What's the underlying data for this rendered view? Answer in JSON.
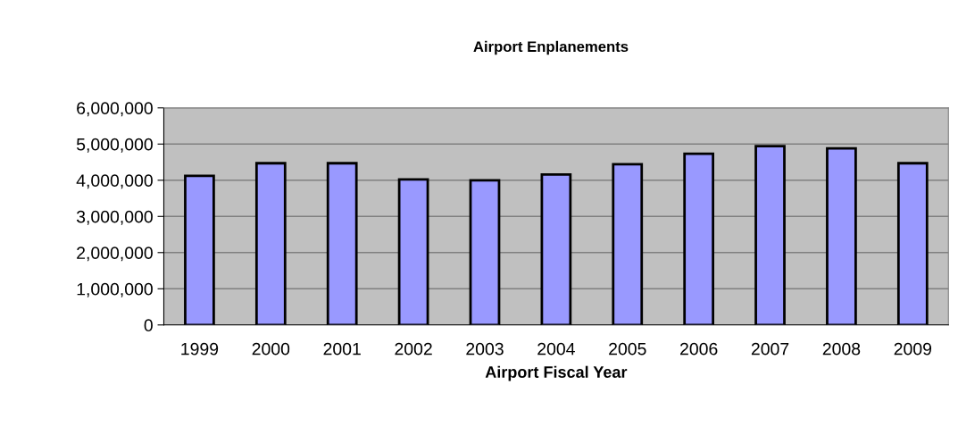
{
  "chart_data": {
    "type": "bar",
    "title": "Airport Enplanements",
    "xlabel": "Airport Fiscal Year",
    "categories": [
      "1999",
      "2000",
      "2001",
      "2002",
      "2003",
      "2004",
      "2005",
      "2006",
      "2007",
      "2008",
      "2009"
    ],
    "values": [
      4120000,
      4470000,
      4470000,
      4020000,
      4000000,
      4160000,
      4440000,
      4730000,
      4940000,
      4880000,
      4470000
    ],
    "color": "#9999ff",
    "ylim": [
      0,
      6000000
    ],
    "yticks": [
      {
        "value": 0,
        "label": "0"
      },
      {
        "value": 1000000,
        "label": "1,000,000"
      },
      {
        "value": 2000000,
        "label": "2,000,000"
      },
      {
        "value": 3000000,
        "label": "3,000,000"
      },
      {
        "value": 4000000,
        "label": "4,000,000"
      },
      {
        "value": 5000000,
        "label": "5,000,000"
      },
      {
        "value": 6000000,
        "label": "6,000,000"
      }
    ],
    "grid": "y"
  }
}
